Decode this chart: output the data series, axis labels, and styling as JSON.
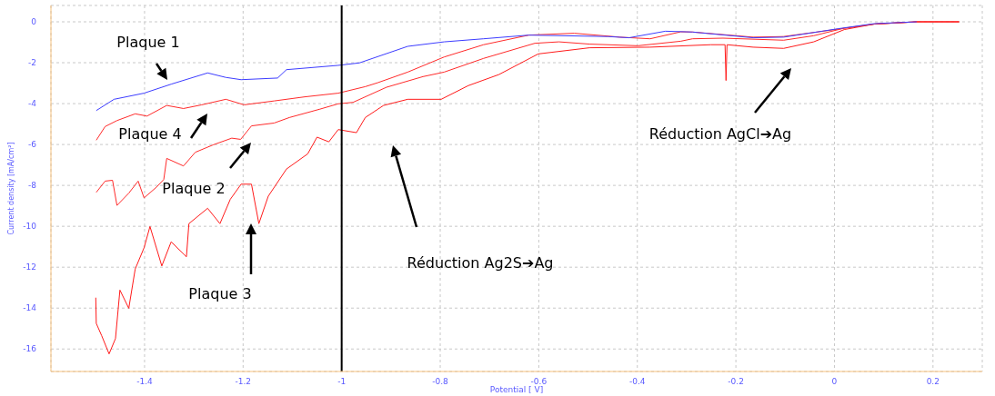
{
  "chart_data": {
    "type": "line",
    "xlabel": "Potential [ V]",
    "ylabel": "Current density [mA/cm²]",
    "xlim": [
      -1.59,
      0.3
    ],
    "ylim": [
      -17.1,
      0.8
    ],
    "xticks": [
      -1.4,
      -1.2,
      -1,
      -0.8,
      -0.6,
      -0.4,
      -0.2,
      0,
      0.2
    ],
    "yticks": [
      0,
      -2,
      -4,
      -6,
      -8,
      -10,
      -12,
      -14,
      -16
    ],
    "grid": true,
    "marker": "none",
    "line_style": "solid",
    "ref_lines": [
      {
        "axis": "x",
        "value": -1,
        "color": "#000000"
      }
    ],
    "annotations": [
      "Plaque 1",
      "Plaque 4",
      "Plaque 2",
      "Plaque 3",
      "Réduction Ag2S➔Ag",
      "Réduction AgCl➔Ag"
    ],
    "series": [
      {
        "color": "#3c3cff",
        "x": [
          -1.498,
          -1.462,
          -1.401,
          -1.346,
          -1.272,
          -1.235,
          -1.204,
          -1.13,
          -1.112,
          -1.007,
          -0.964,
          -0.866,
          -0.792,
          -0.712,
          -0.62,
          -0.46,
          -0.417,
          -0.343,
          -0.3,
          -0.288,
          -0.165,
          -0.103,
          0.007,
          0.081,
          0.167
        ],
        "values": [
          -4.34,
          -3.79,
          -3.49,
          -3.05,
          -2.5,
          -2.72,
          -2.83,
          -2.75,
          -2.34,
          -2.13,
          -2.01,
          -1.2,
          -0.98,
          -0.83,
          -0.65,
          -0.72,
          -0.78,
          -0.46,
          -0.49,
          -0.5,
          -0.78,
          -0.75,
          -0.34,
          -0.09,
          0
        ]
      },
      {
        "color": "#ff2a2a",
        "x": [
          -1.498,
          -1.48,
          -1.456,
          -1.419,
          -1.395,
          -1.355,
          -1.321,
          -1.284,
          -1.235,
          -1.198,
          -1.137,
          -1.075,
          -1.007,
          -0.952,
          -0.927,
          -0.866,
          -0.792,
          -0.712,
          -0.62,
          -0.528,
          -0.435,
          -0.374,
          -0.312,
          -0.288,
          -0.165,
          -0.103,
          0.007,
          0.081,
          0.167,
          0.253
        ],
        "values": [
          -5.79,
          -5.12,
          -4.83,
          -4.5,
          -4.61,
          -4.09,
          -4.24,
          -4.06,
          -3.79,
          -4.06,
          -3.87,
          -3.67,
          -3.49,
          -3.17,
          -2.98,
          -2.46,
          -1.72,
          -1.12,
          -0.65,
          -0.56,
          -0.75,
          -0.83,
          -0.49,
          -0.5,
          -0.75,
          -0.72,
          -0.36,
          -0.11,
          0,
          0
        ]
      },
      {
        "color": "#ff2a2a",
        "x": [
          -1.498,
          -1.48,
          -1.465,
          -1.456,
          -1.432,
          -1.413,
          -1.401,
          -1.376,
          -1.361,
          -1.355,
          -1.321,
          -1.297,
          -1.26,
          -1.223,
          -1.205,
          -1.183,
          -1.137,
          -1.106,
          -1.044,
          -1.007,
          -0.977,
          -0.909,
          -0.835,
          -0.792,
          -0.712,
          -0.608,
          -0.559,
          -0.497,
          -0.399,
          -0.312,
          -0.288,
          -0.226,
          -0.103,
          -0.042,
          0.02,
          0.081,
          0.167,
          0.253
        ],
        "values": [
          -8.34,
          -7.79,
          -7.75,
          -8.98,
          -8.38,
          -7.79,
          -8.61,
          -8.09,
          -7.71,
          -6.68,
          -7.05,
          -6.38,
          -6.01,
          -5.69,
          -5.75,
          -5.09,
          -4.95,
          -4.68,
          -4.27,
          -4.01,
          -3.94,
          -3.2,
          -2.68,
          -2.46,
          -1.79,
          -1.05,
          -0.98,
          -1.09,
          -1.17,
          -0.95,
          -0.83,
          -0.8,
          -0.9,
          -0.68,
          -0.31,
          -0.11,
          0,
          0
        ]
      },
      {
        "color": "#ff1a1a",
        "x": [
          -1.499,
          -1.498,
          -1.487,
          -1.472,
          -1.459,
          -1.45,
          -1.432,
          -1.419,
          -1.401,
          -1.389,
          -1.365,
          -1.346,
          -1.315,
          -1.31,
          -1.272,
          -1.247,
          -1.226,
          -1.204,
          -1.183,
          -1.168,
          -1.149,
          -1.112,
          -1.069,
          -1.05,
          -1.026,
          -1.007,
          -0.97,
          -0.952,
          -0.915,
          -0.866,
          -0.798,
          -0.743,
          -0.681,
          -0.601,
          -0.497,
          -0.374,
          -0.251,
          -0.222,
          -0.22,
          -0.218,
          -0.165,
          -0.103,
          -0.042,
          0.02,
          0.081,
          0.167,
          0.253
        ],
        "values": [
          -13.49,
          -14.75,
          -15.35,
          -16.24,
          -15.49,
          -13.12,
          -14.01,
          -12.09,
          -11.05,
          -10.01,
          -11.94,
          -10.76,
          -11.49,
          -9.87,
          -9.12,
          -9.87,
          -8.68,
          -7.94,
          -7.94,
          -9.87,
          -8.53,
          -7.2,
          -6.46,
          -5.64,
          -5.87,
          -5.27,
          -5.42,
          -4.68,
          -4.09,
          -3.79,
          -3.79,
          -3.12,
          -2.58,
          -1.57,
          -1.27,
          -1.24,
          -1.12,
          -1.12,
          -2.87,
          -1.12,
          -1.24,
          -1.3,
          -0.98,
          -0.38,
          -0.11,
          0,
          0
        ]
      }
    ]
  }
}
